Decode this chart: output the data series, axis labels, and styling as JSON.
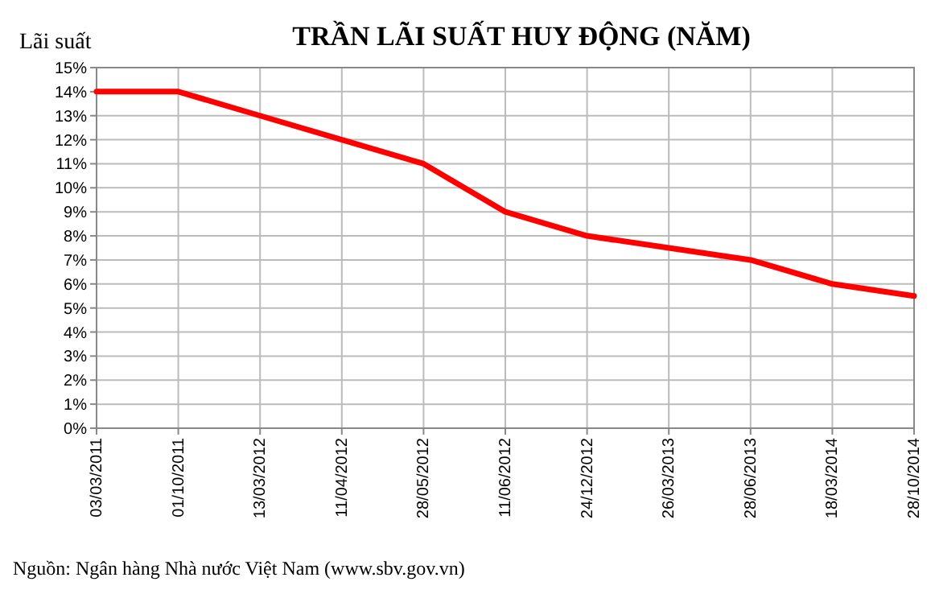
{
  "chart_data": {
    "type": "line",
    "title": "TRẦN LÃI SUẤT HUY ĐỘNG (NĂM)",
    "ylabel": "Lãi suất",
    "categories": [
      "03/03/2011",
      "01/10/2011",
      "13/03/2012",
      "11/04/2012",
      "28/05/2012",
      "11/06/2012",
      "24/12/2012",
      "26/03/2013",
      "28/06/2013",
      "18/03/2014",
      "28/10/2014"
    ],
    "series": [
      {
        "color": "#ff0000",
        "values": [
          14,
          14,
          13,
          12,
          11,
          9,
          8,
          7.5,
          7,
          6,
          5.5
        ]
      }
    ],
    "ylim": [
      0,
      15
    ],
    "yticks": [
      {
        "value": 0,
        "label": "0%"
      },
      {
        "value": 1,
        "label": "1%"
      },
      {
        "value": 2,
        "label": "2%"
      },
      {
        "value": 3,
        "label": "3%"
      },
      {
        "value": 4,
        "label": "4%"
      },
      {
        "value": 5,
        "label": "5%"
      },
      {
        "value": 6,
        "label": "6%"
      },
      {
        "value": 7,
        "label": "7%"
      },
      {
        "value": 8,
        "label": "8%"
      },
      {
        "value": 9,
        "label": "9%"
      },
      {
        "value": 10,
        "label": "10%"
      },
      {
        "value": 11,
        "label": "11%"
      },
      {
        "value": 12,
        "label": "12%"
      },
      {
        "value": 13,
        "label": "13%"
      },
      {
        "value": 14,
        "label": "14%"
      },
      {
        "value": 15,
        "label": "15%"
      }
    ],
    "grid": true,
    "marker": "none",
    "line_style": "solid",
    "annotations": [
      "Nguồn: Ngân hàng Nhà nước Việt Nam (www.sbv.gov.vn)"
    ]
  }
}
